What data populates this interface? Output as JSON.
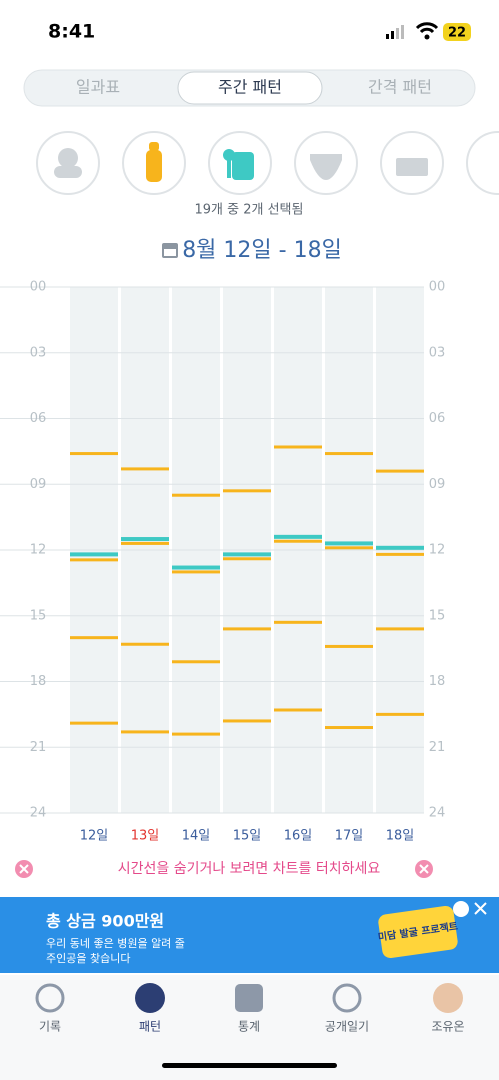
{
  "status_bar": {
    "time": "8:41",
    "battery": "22"
  },
  "tabs": [
    "일과표",
    "주간 패턴",
    "간격 패턴"
  ],
  "filter_summary": "19개 중 2개 선택됨",
  "date_range": "8월 12일 - 18일",
  "chart_data": {
    "type": "timeline",
    "categories": [
      "12일",
      "13일",
      "14일",
      "15일",
      "16일",
      "17일",
      "18일"
    ],
    "category_colors": [
      "#3b5d9c",
      "#e2342f",
      "#3b5d9c",
      "#3b5d9c",
      "#3b5d9c",
      "#3b5d9c",
      "#3b5d9c"
    ],
    "ylim": [
      0,
      24
    ],
    "yticks": [
      {
        "value": 0,
        "label": "00"
      },
      {
        "value": 3,
        "label": "03"
      },
      {
        "value": 6,
        "label": "06"
      },
      {
        "value": 9,
        "label": "09"
      },
      12,
      15,
      18,
      21,
      24
    ],
    "grid": true,
    "series": [
      {
        "color": "#f7b41c",
        "values": [
          [
            7.6,
            12.45,
            16.0,
            19.9
          ],
          [
            8.3,
            11.7,
            16.3,
            20.3
          ],
          [
            9.5,
            13.0,
            17.1,
            20.4
          ],
          [
            9.3,
            12.4,
            15.6,
            19.8
          ],
          [
            7.3,
            11.6,
            15.3,
            19.3
          ],
          [
            7.6,
            11.9,
            16.4,
            20.1
          ],
          [
            8.4,
            12.2,
            15.6,
            19.5
          ]
        ]
      },
      {
        "color": "#3ec9c4",
        "values": [
          [
            12.2
          ],
          [
            11.5
          ],
          [
            12.8
          ],
          [
            12.2
          ],
          [
            11.4
          ],
          [
            11.7
          ],
          [
            11.9
          ]
        ]
      }
    ]
  },
  "hint": "시간선을 숨기거나 보려면 차트를 터치하세요",
  "ad": {
    "headline": "총 상금 900만원",
    "line1": "우리 동네 좋은 병원을 알려 줄",
    "line2": "주인공을 찾습니다",
    "badge": "미담 발굴 프로젝트"
  },
  "nav": [
    "기록",
    "패턴",
    "통계",
    "공개일기",
    "조유온"
  ]
}
